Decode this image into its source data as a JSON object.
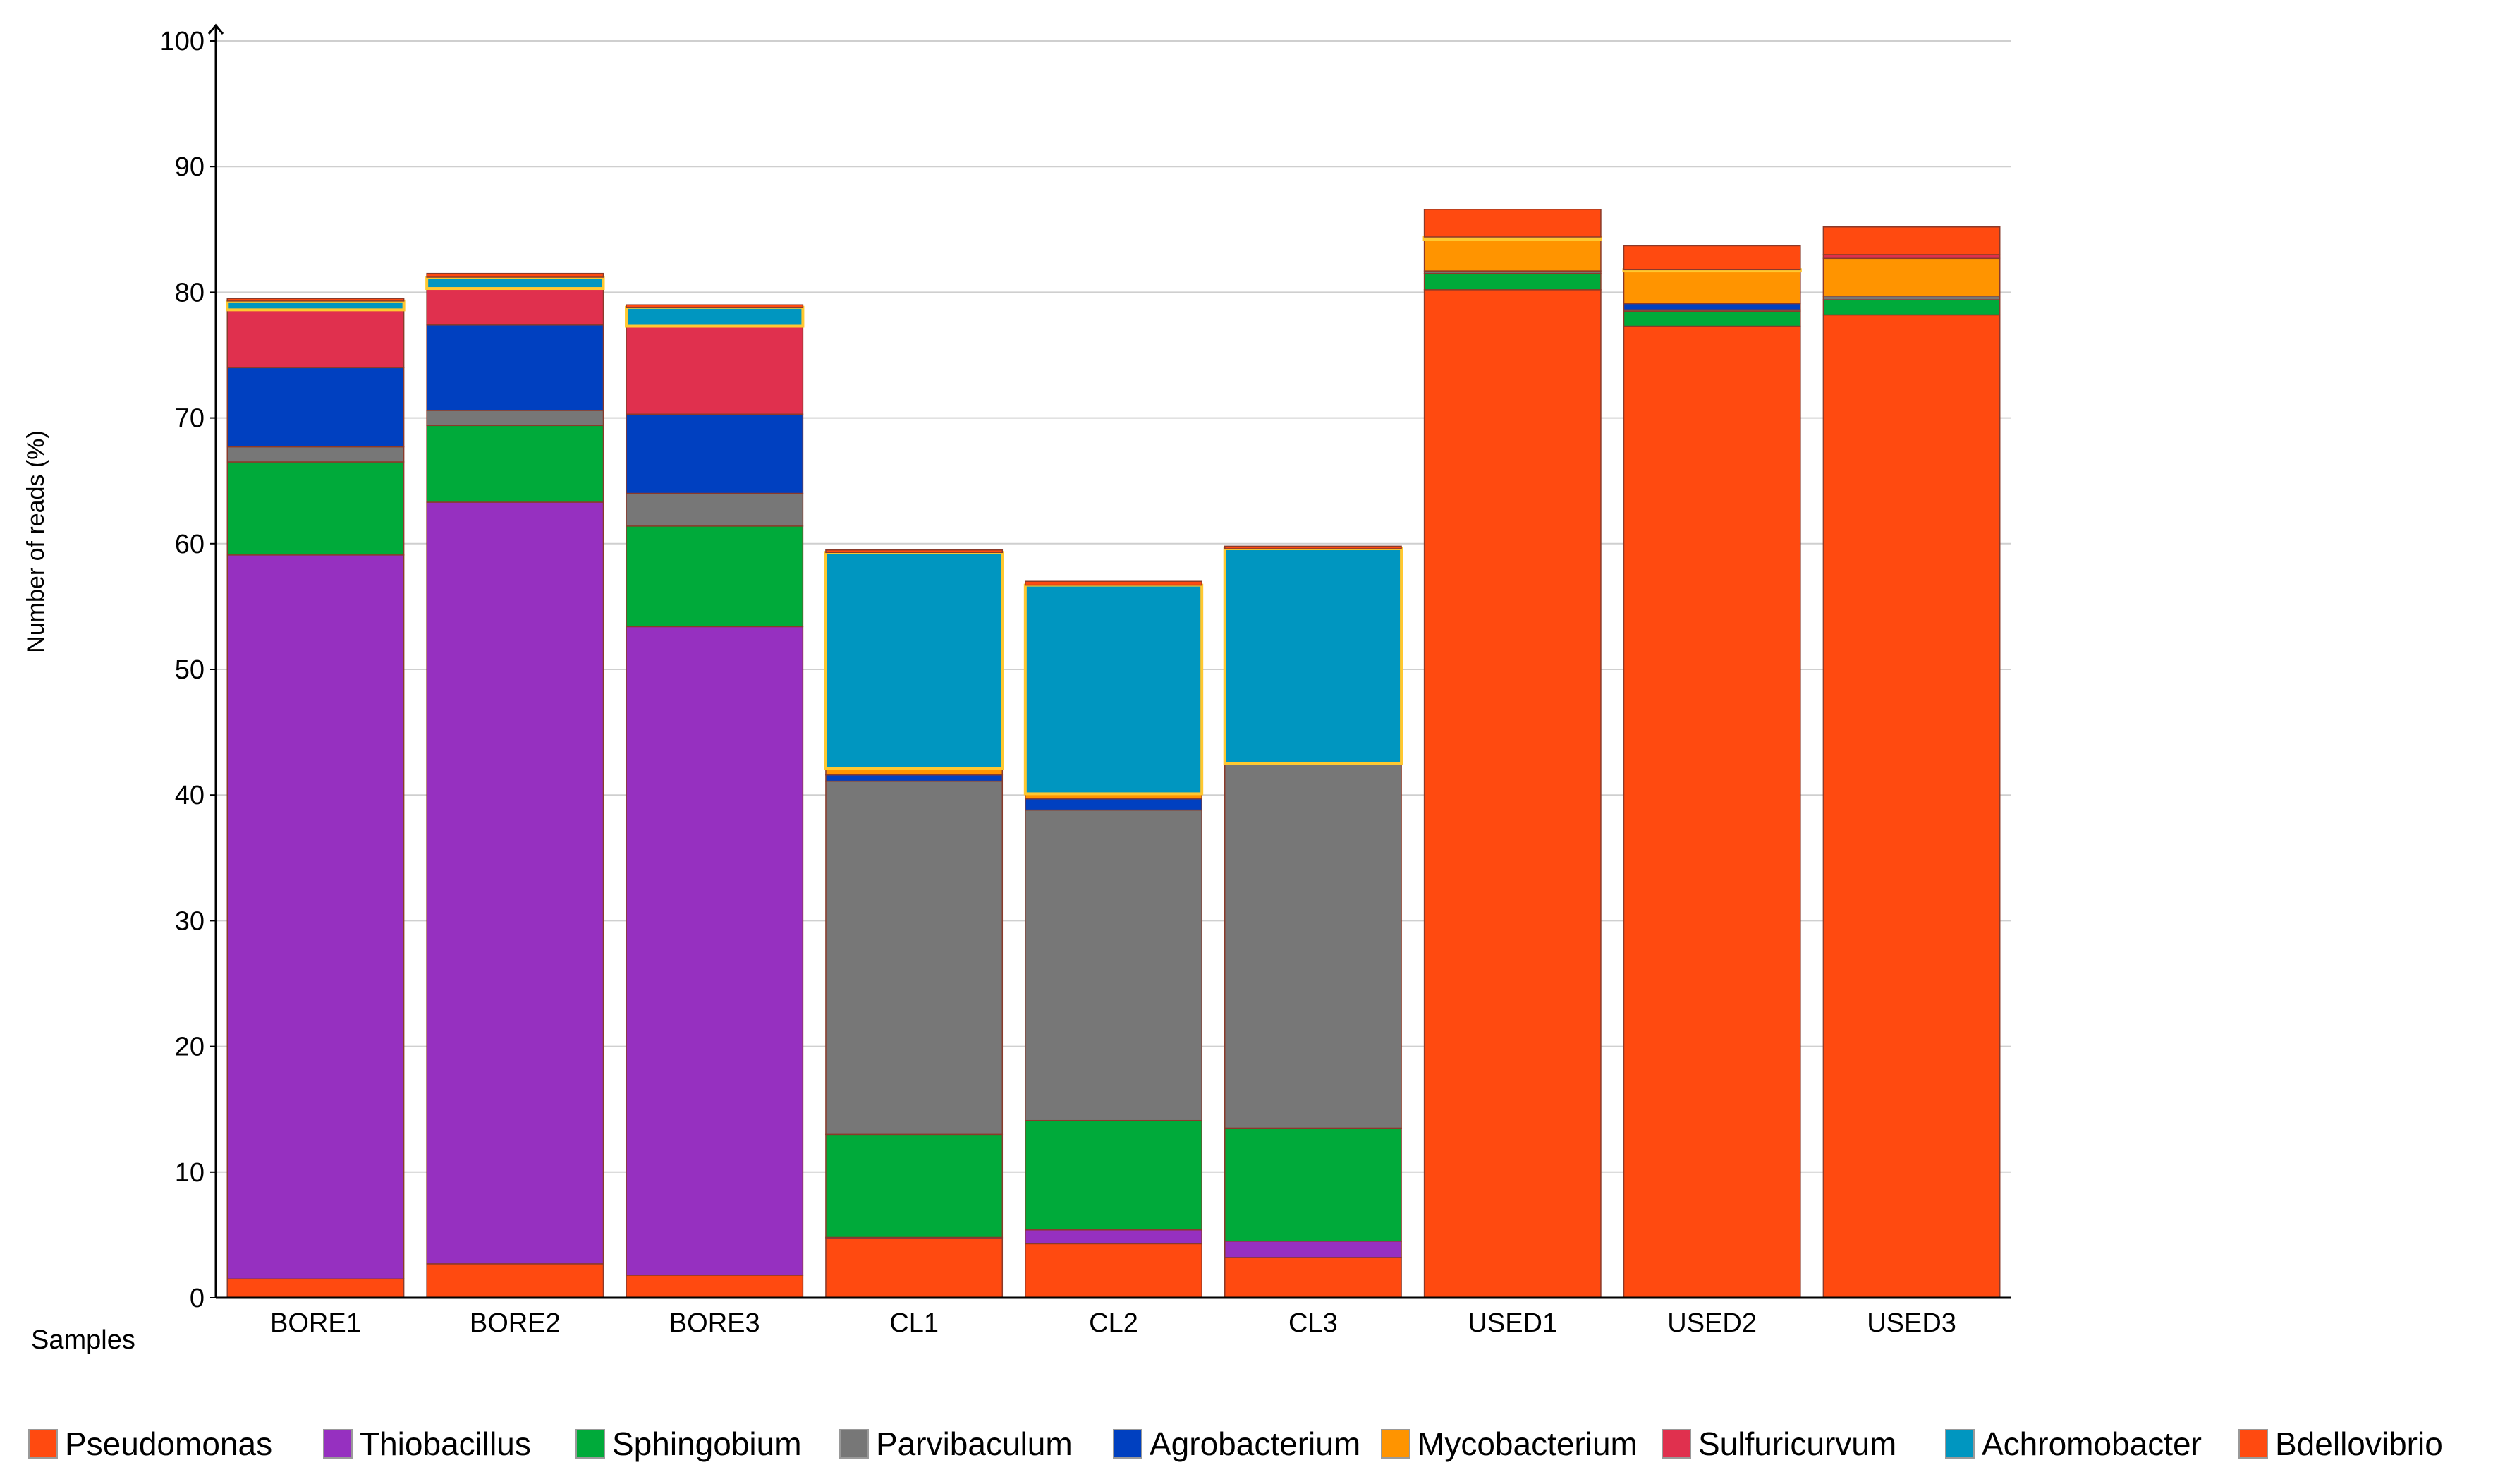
{
  "chart_data": {
    "type": "bar",
    "stacked": true,
    "title": "",
    "xlabel": "Samples",
    "ylabel": "Number of reads (%)",
    "ylim": [
      0,
      100
    ],
    "yticks": [
      0,
      10,
      20,
      30,
      40,
      50,
      60,
      70,
      80,
      90,
      100
    ],
    "grid": true,
    "legend_position": "bottom",
    "categories": [
      "BORE1",
      "BORE2",
      "BORE3",
      "CL1",
      "CL2",
      "CL3",
      "USED1",
      "USED2",
      "USED3"
    ],
    "series": [
      {
        "name": "Pseudomonas",
        "color": "#FF4A10",
        "values": [
          1.5,
          2.7,
          1.8,
          4.7,
          4.3,
          3.2,
          80.2,
          77.3,
          78.2
        ]
      },
      {
        "name": "Thiobacillus",
        "color": "#9630C0",
        "values": [
          57.6,
          60.6,
          51.6,
          0.1,
          1.1,
          1.3,
          0.0,
          0.0,
          0.0
        ]
      },
      {
        "name": "Sphingobium",
        "color": "#00AA3A",
        "values": [
          7.4,
          6.1,
          8.0,
          8.2,
          8.7,
          9.0,
          1.3,
          1.2,
          1.2
        ]
      },
      {
        "name": "Parvibaculum",
        "color": "#777777",
        "values": [
          1.2,
          1.2,
          2.6,
          28.1,
          24.7,
          29.0,
          0.2,
          0.1,
          0.3
        ]
      },
      {
        "name": "Agrobacterium",
        "color": "#0040C0",
        "values": [
          6.3,
          6.8,
          6.3,
          0.5,
          0.9,
          0.0,
          0.0,
          0.5,
          0.0
        ]
      },
      {
        "name": "Mycobacterium",
        "color": "#FF9400",
        "values": [
          0.0,
          0.0,
          0.0,
          0.5,
          0.4,
          0.0,
          2.5,
          2.6,
          3.0
        ]
      },
      {
        "name": "Sulfuricurvum",
        "color": "#E0304E",
        "values": [
          4.6,
          2.9,
          7.0,
          0.0,
          0.0,
          0.0,
          0.0,
          0.0,
          0.3
        ]
      },
      {
        "name": "Achromobacter",
        "color": "#0096C0",
        "values": [
          0.7,
          0.9,
          1.5,
          17.2,
          16.6,
          17.1,
          0.2,
          0.1,
          0.0
        ]
      },
      {
        "name": "Bdellovibrio",
        "color": "#FF4A10",
        "values": [
          0.2,
          0.3,
          0.2,
          0.2,
          0.3,
          0.2,
          2.2,
          1.9,
          2.2
        ]
      }
    ]
  }
}
